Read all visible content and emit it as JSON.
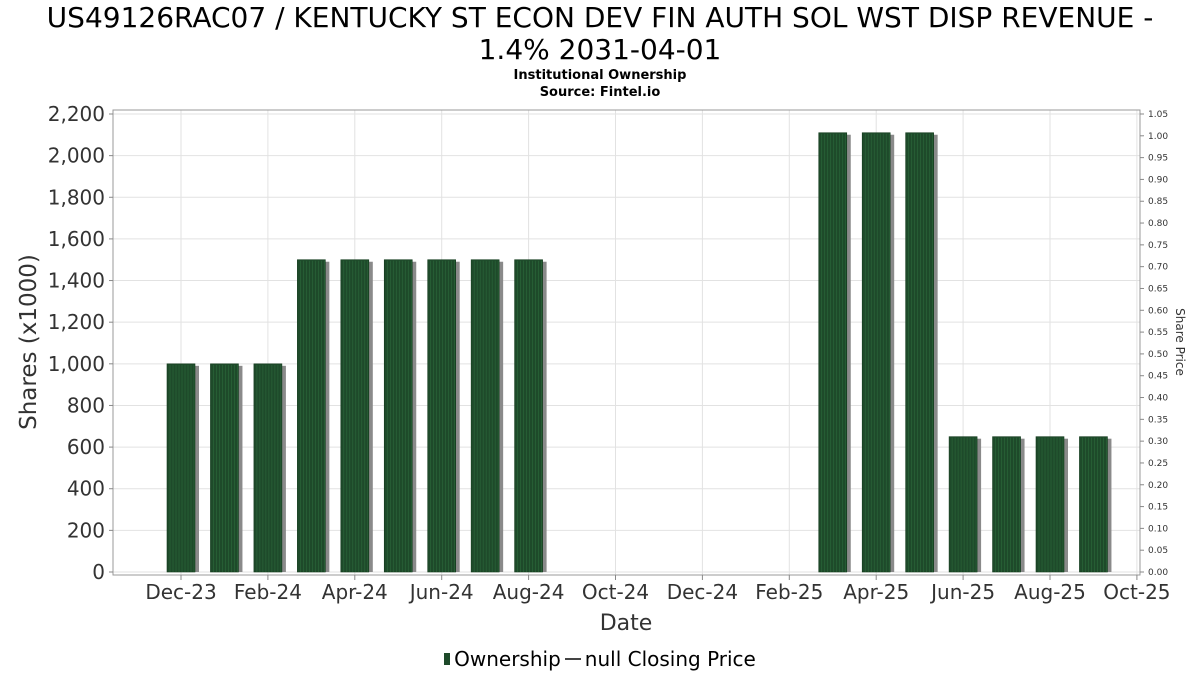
{
  "chart_data": {
    "type": "bar",
    "title_line1": "US49126RAC07 / KENTUCKY ST ECON DEV FIN AUTH SOL WST DISP REVENUE -",
    "title_line2": "1.4% 2031-04-01",
    "subtitle_line1": "Institutional Ownership",
    "subtitle_line2": "Source: Fintel.io",
    "xlabel": "Date",
    "ylabel": "Shares (x1000)",
    "y2label": "Share Price",
    "ylim": [
      0,
      2200
    ],
    "y2lim": [
      0,
      1.05
    ],
    "yticks": [
      "0",
      "200",
      "400",
      "600",
      "800",
      "1,000",
      "1,200",
      "1,400",
      "1,600",
      "1,800",
      "2,000",
      "2,200"
    ],
    "y2ticks": [
      "0.00",
      "0.05",
      "0.10",
      "0.15",
      "0.20",
      "0.25",
      "0.30",
      "0.35",
      "0.40",
      "0.45",
      "0.50",
      "0.55",
      "0.60",
      "0.65",
      "0.70",
      "0.75",
      "0.80",
      "0.85",
      "0.90",
      "0.95",
      "1.00",
      "1.05"
    ],
    "xticks": [
      "Dec-23",
      "Feb-24",
      "Apr-24",
      "Jun-24",
      "Aug-24",
      "Oct-24",
      "Dec-24",
      "Feb-25",
      "Apr-25",
      "Jun-25",
      "Aug-25",
      "Oct-25"
    ],
    "grid": true,
    "legend_position": "bottom",
    "colors": {
      "bar": "#1e4a2a",
      "bar_shadow": "#8a8a8a",
      "grid": "#e2e2e2"
    },
    "series": [
      {
        "name": "Ownership",
        "x": [
          "Dec-23",
          "Jan-24",
          "Feb-24",
          "Mar-24",
          "Apr-24",
          "May-24",
          "Jun-24",
          "Jul-24",
          "Aug-24",
          "Mar-25",
          "Apr-25",
          "May-25",
          "Jun-25",
          "Jul-25",
          "Aug-25",
          "Sep-25"
        ],
        "values": [
          1000,
          1000,
          1000,
          1500,
          1500,
          1500,
          1500,
          1500,
          1500,
          2110,
          2110,
          2110,
          650,
          650,
          650,
          650
        ]
      }
    ],
    "legend": [
      {
        "label": "Ownership",
        "icon": "bar-swatch"
      },
      {
        "label": "null Closing Price",
        "icon": "line-swatch"
      }
    ]
  }
}
